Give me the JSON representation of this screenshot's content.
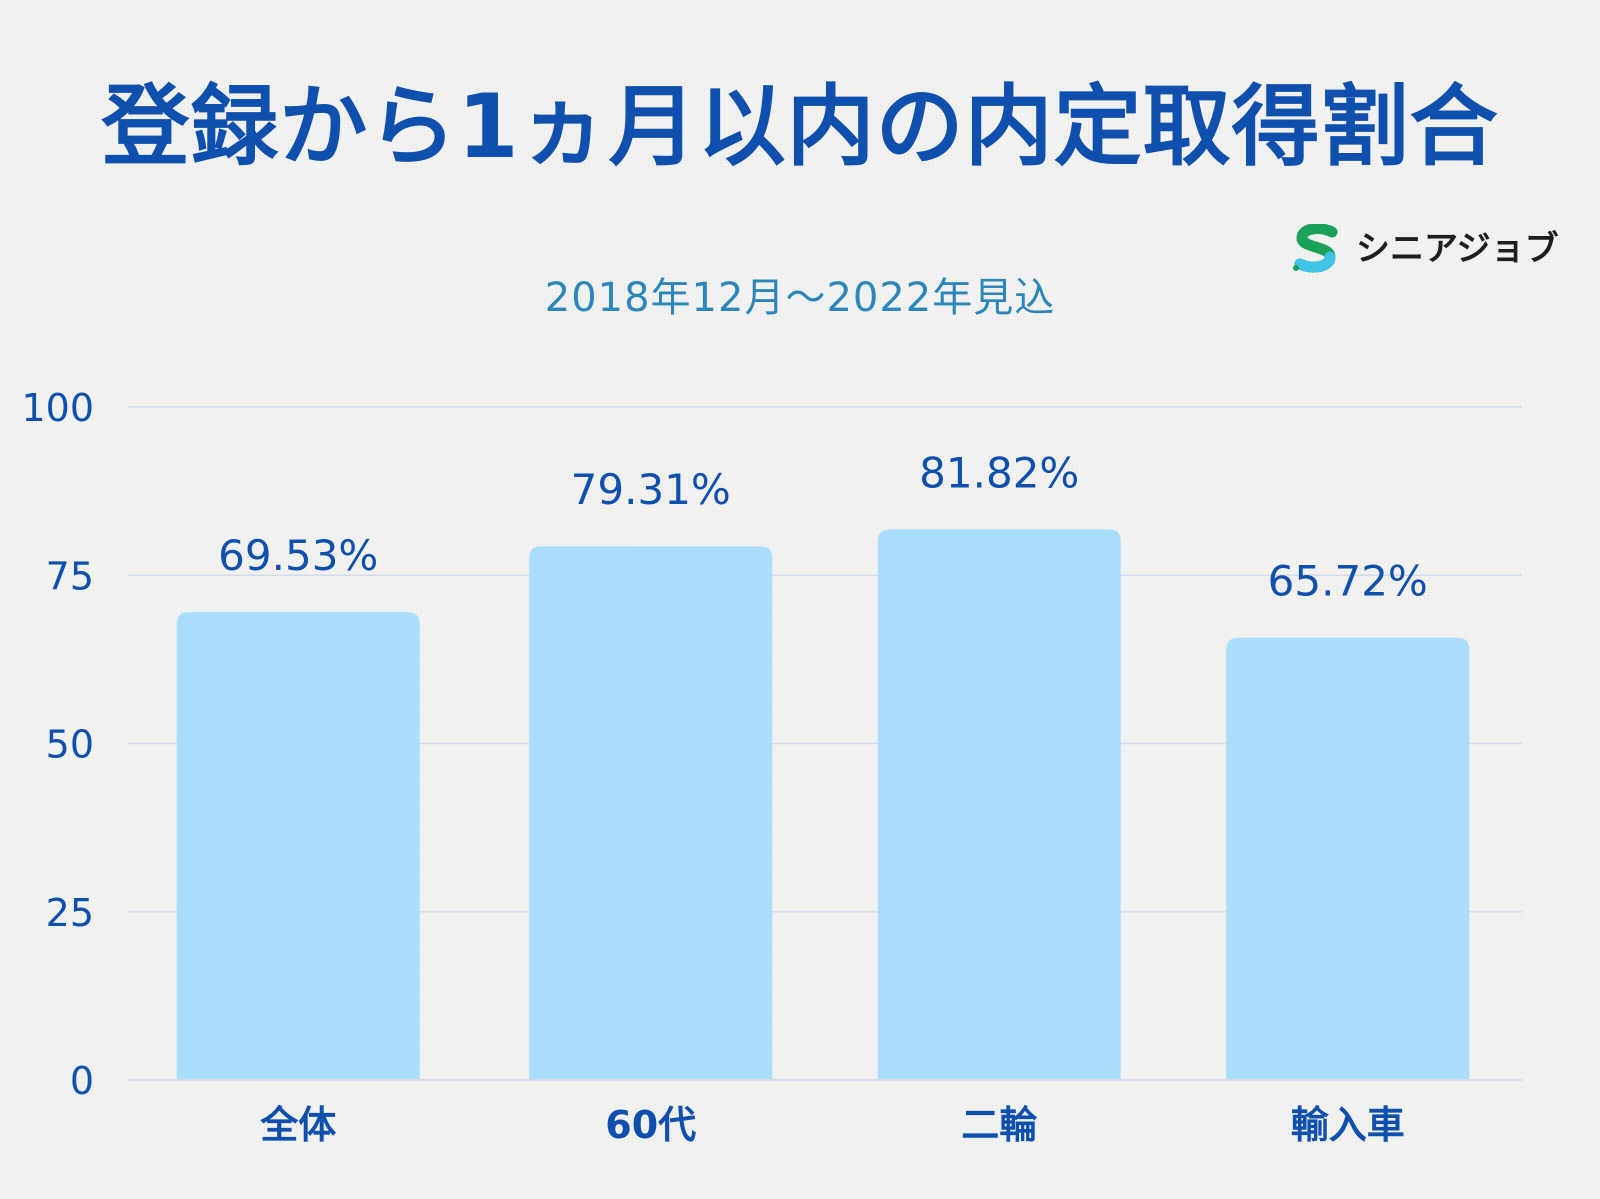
{
  "header": {
    "title": "登録から1ヵ月以内の内定取得割合",
    "subtitle": "2018年12月～2022年見込"
  },
  "logo": {
    "text": "シニアジョブ",
    "icon": "s-logo-icon",
    "colors": [
      "#1aa15a",
      "#3fc3e6"
    ]
  },
  "colors": {
    "title": "#0f4fad",
    "subtitle": "#2c86b9",
    "bar": "#a9ddfb",
    "axis_text": "#0f4fad",
    "grid": "#d3dbea"
  },
  "chart_data": {
    "type": "bar",
    "title": "登録から1ヵ月以内の内定取得割合",
    "subtitle": "2018年12月～2022年見込",
    "categories": [
      "全体",
      "60代",
      "二輪",
      "輸入車"
    ],
    "values": [
      69.53,
      79.31,
      81.82,
      65.72
    ],
    "data_labels": [
      "69.53%",
      "79.31%",
      "81.82%",
      "65.72%"
    ],
    "yticks": [
      0,
      25,
      50,
      75,
      100
    ],
    "ytick_labels": [
      "0",
      "25",
      "50",
      "75",
      "100"
    ],
    "ylim": [
      0,
      100
    ],
    "xlabel": "",
    "ylabel": "",
    "grid": true,
    "legend": "none"
  }
}
